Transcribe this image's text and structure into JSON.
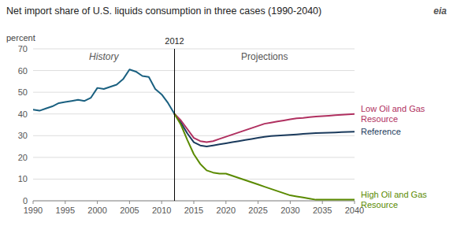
{
  "chart_data": {
    "type": "line",
    "title": "Net import share of U.S. liquids consumption  in three cases (1990-2040)",
    "y_label": "percent",
    "annotations": [
      "History",
      "Projections",
      "eia"
    ],
    "vline": 2012,
    "x": [
      1990,
      1991,
      1992,
      1993,
      1994,
      1995,
      1996,
      1997,
      1998,
      1999,
      2000,
      2001,
      2002,
      2003,
      2004,
      2005,
      2006,
      2007,
      2008,
      2009,
      2010,
      2011,
      2012,
      2013,
      2014,
      2015,
      2016,
      2017,
      2018,
      2019,
      2020,
      2021,
      2022,
      2023,
      2024,
      2025,
      2026,
      2027,
      2028,
      2029,
      2030,
      2031,
      2032,
      2033,
      2034,
      2035,
      2036,
      2037,
      2038,
      2039,
      2040
    ],
    "series": [
      {
        "color": "#1a6080",
        "values": [
          42,
          41.5,
          42.5,
          43.5,
          45.0,
          45.5,
          46.0,
          46.5,
          46.0,
          47.5,
          52.0,
          51.5,
          52.5,
          53.5,
          56.0,
          60.5,
          59.5,
          57.5,
          57.0,
          51.5,
          49.0,
          45.0,
          40.0,
          null,
          null,
          null,
          null,
          null,
          null,
          null,
          null,
          null,
          null,
          null,
          null,
          null,
          null,
          null,
          null,
          null,
          null,
          null,
          null,
          null,
          null,
          null,
          null,
          null,
          null,
          null,
          null
        ]
      },
      {
        "name": "Reference",
        "color": "#1a3a5c",
        "values": [
          null,
          null,
          null,
          null,
          null,
          null,
          null,
          null,
          null,
          null,
          null,
          null,
          null,
          null,
          null,
          null,
          null,
          null,
          null,
          null,
          null,
          null,
          40.0,
          36.0,
          31.0,
          27.0,
          25.5,
          25.0,
          25.5,
          26.0,
          26.5,
          27.0,
          27.5,
          28.0,
          28.5,
          29.0,
          29.5,
          29.8,
          30.0,
          30.2,
          30.4,
          30.6,
          30.8,
          31.0,
          31.2,
          31.3,
          31.4,
          31.5,
          31.6,
          31.7,
          31.8
        ]
      },
      {
        "name": "Low Oil and Gas\nResource",
        "color": "#b03060",
        "values": [
          null,
          null,
          null,
          null,
          null,
          null,
          null,
          null,
          null,
          null,
          null,
          null,
          null,
          null,
          null,
          null,
          null,
          null,
          null,
          null,
          null,
          null,
          40.0,
          37.0,
          33.0,
          29.0,
          27.5,
          27.0,
          27.5,
          28.5,
          29.5,
          30.5,
          31.5,
          32.5,
          33.5,
          34.5,
          35.5,
          36.0,
          36.5,
          37.0,
          37.5,
          38.0,
          38.2,
          38.5,
          38.8,
          39.0,
          39.2,
          39.4,
          39.6,
          39.8,
          40.0
        ]
      },
      {
        "name": "High Oil and Gas\nResource",
        "color": "#5a8a00",
        "values": [
          null,
          null,
          null,
          null,
          null,
          null,
          null,
          null,
          null,
          null,
          null,
          null,
          null,
          null,
          null,
          null,
          null,
          null,
          null,
          null,
          null,
          null,
          40.0,
          35.0,
          28.0,
          21.5,
          17.0,
          14.0,
          13.0,
          12.5,
          12.5,
          11.5,
          10.5,
          9.5,
          8.5,
          7.5,
          6.5,
          5.5,
          4.5,
          3.5,
          2.5,
          2.0,
          1.5,
          1.0,
          0.5,
          0.5,
          0.5,
          0.5,
          0.5,
          0.5,
          0.5
        ]
      }
    ],
    "xlim": [
      1990,
      2040
    ],
    "ylim": [
      0,
      70
    ],
    "xticks": [
      1990,
      1995,
      2000,
      2005,
      2010,
      2015,
      2020,
      2025,
      2030,
      2035,
      2040
    ],
    "yticks": [
      0,
      10,
      20,
      30,
      40,
      50,
      60,
      70
    ],
    "grid": true
  }
}
